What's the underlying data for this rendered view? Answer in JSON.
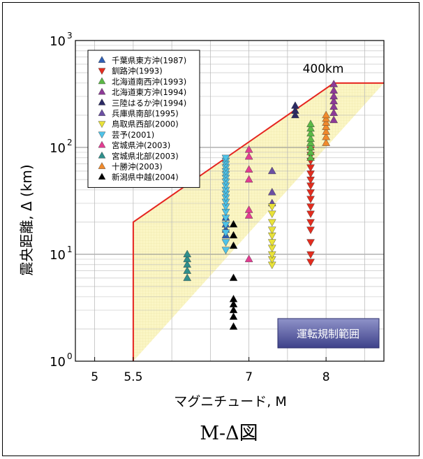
{
  "figure": {
    "caption": "M-Δ図",
    "region_label": "運転規制範囲",
    "cap_label": "400km"
  },
  "chart_data": {
    "type": "scatter",
    "xlabel": "マグニチュード, M",
    "ylabel": "震央距離, Δ (km)",
    "x_ticks": [
      "5",
      "5.5",
      "7",
      "8"
    ],
    "y_ticks": [
      "10^3",
      "10^2",
      "10^1",
      "10^0"
    ],
    "xlim": [
      4.75,
      8.75
    ],
    "ylim": [
      1,
      1000
    ],
    "yscale": "log",
    "grid": true,
    "legend_position": "top-left",
    "regulation_boundary": [
      [
        5.5,
        1
      ],
      [
        5.5,
        20
      ],
      [
        8.1,
        400
      ],
      [
        8.75,
        400
      ]
    ],
    "series": [
      {
        "name": "千葉県東方沖(1987)",
        "marker": "up",
        "color": "#2f5fb5",
        "points": [
          [
            6.7,
            15
          ],
          [
            6.7,
            17
          ],
          [
            6.7,
            19
          ],
          [
            6.7,
            22
          ]
        ]
      },
      {
        "name": "釧路沖(1993)",
        "marker": "down",
        "color": "#e32d1f",
        "points": [
          [
            7.8,
            8.5
          ],
          [
            7.8,
            10
          ],
          [
            7.8,
            13
          ],
          [
            7.8,
            17
          ],
          [
            7.8,
            20
          ],
          [
            7.8,
            24
          ],
          [
            7.8,
            28
          ],
          [
            7.8,
            33
          ],
          [
            7.8,
            38
          ],
          [
            7.8,
            44
          ],
          [
            7.8,
            50
          ],
          [
            7.8,
            57
          ],
          [
            7.8,
            65
          ],
          [
            7.8,
            75
          ],
          [
            7.8,
            85
          ],
          [
            7.8,
            96
          ]
        ]
      },
      {
        "name": "北海道南西沖(1993)",
        "marker": "up",
        "color": "#5bb946",
        "points": [
          [
            7.8,
            80
          ],
          [
            7.8,
            90
          ],
          [
            7.8,
            100
          ],
          [
            7.8,
            110
          ],
          [
            7.8,
            120
          ],
          [
            7.8,
            135
          ],
          [
            7.8,
            150
          ],
          [
            7.8,
            165
          ]
        ]
      },
      {
        "name": "北海道東方沖(1994)",
        "marker": "up",
        "color": "#8d3a97",
        "points": [
          [
            8.1,
            180
          ],
          [
            8.1,
            210
          ],
          [
            8.1,
            240
          ],
          [
            8.1,
            270
          ],
          [
            8.1,
            300
          ],
          [
            8.1,
            340
          ],
          [
            8.1,
            390
          ]
        ]
      },
      {
        "name": "三陸はるか沖(1994)",
        "marker": "up",
        "color": "#2b2a63",
        "points": [
          [
            7.6,
            200
          ],
          [
            7.6,
            220
          ],
          [
            7.6,
            245
          ]
        ]
      },
      {
        "name": "兵庫県南部(1995)",
        "marker": "up",
        "color": "#6b4fa3",
        "points": [
          [
            7.3,
            30
          ],
          [
            7.3,
            38
          ],
          [
            7.3,
            60
          ]
        ]
      },
      {
        "name": "鳥取県西部(2000)",
        "marker": "down",
        "color": "#e9e23a",
        "points": [
          [
            7.3,
            8
          ],
          [
            7.3,
            9
          ],
          [
            7.3,
            10
          ],
          [
            7.3,
            11.5
          ],
          [
            7.3,
            13
          ],
          [
            7.3,
            15
          ],
          [
            7.3,
            17
          ],
          [
            7.3,
            20
          ],
          [
            7.3,
            24
          ],
          [
            7.3,
            28
          ]
        ]
      },
      {
        "name": "芸予(2001)",
        "marker": "down",
        "color": "#4fc3e8",
        "points": [
          [
            6.7,
            11
          ],
          [
            6.7,
            13
          ],
          [
            6.7,
            16
          ],
          [
            6.7,
            19
          ],
          [
            6.7,
            22
          ],
          [
            6.7,
            25
          ],
          [
            6.7,
            28
          ],
          [
            6.7,
            31
          ],
          [
            6.7,
            34
          ],
          [
            6.7,
            37
          ],
          [
            6.7,
            40
          ],
          [
            6.7,
            44
          ],
          [
            6.7,
            48
          ],
          [
            6.7,
            52
          ],
          [
            6.7,
            56
          ],
          [
            6.7,
            60
          ],
          [
            6.7,
            65
          ],
          [
            6.7,
            70
          ],
          [
            6.7,
            75
          ],
          [
            6.7,
            80
          ]
        ]
      },
      {
        "name": "宮城県沖(2003)",
        "marker": "up",
        "color": "#e23d92",
        "points": [
          [
            7.0,
            9
          ],
          [
            7.0,
            23
          ],
          [
            7.0,
            26
          ],
          [
            7.0,
            50
          ],
          [
            7.0,
            62
          ],
          [
            7.0,
            82
          ],
          [
            7.0,
            95
          ]
        ]
      },
      {
        "name": "宮城県北部(2003)",
        "marker": "up",
        "color": "#2f8f8c",
        "points": [
          [
            6.2,
            6
          ],
          [
            6.2,
            7
          ],
          [
            6.2,
            8
          ],
          [
            6.2,
            9
          ],
          [
            6.2,
            10
          ]
        ]
      },
      {
        "name": "十勝沖(2003)",
        "marker": "up",
        "color": "#f08a2c",
        "points": [
          [
            8.0,
            110
          ],
          [
            8.0,
            125
          ],
          [
            8.0,
            140
          ],
          [
            8.0,
            155
          ],
          [
            8.0,
            170
          ],
          [
            8.0,
            185
          ],
          [
            8.0,
            200
          ]
        ]
      },
      {
        "name": "新潟県中越(2004)",
        "marker": "up",
        "color": "#000000",
        "points": [
          [
            6.8,
            2.1
          ],
          [
            6.8,
            2.6
          ],
          [
            6.8,
            3.0
          ],
          [
            6.8,
            3.4
          ],
          [
            6.8,
            3.8
          ],
          [
            6.8,
            6.0
          ],
          [
            6.8,
            12
          ],
          [
            6.8,
            15
          ],
          [
            6.8,
            19
          ]
        ]
      }
    ]
  }
}
